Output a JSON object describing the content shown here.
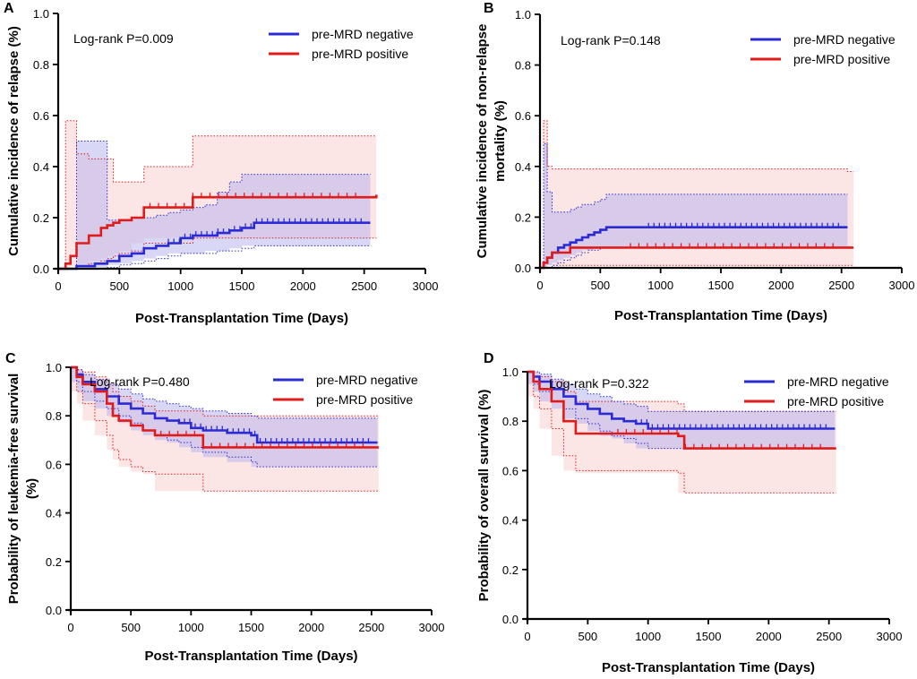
{
  "chart_data": [
    {
      "type": "line",
      "subtype": "kaplan-meier-cumulative-incidence",
      "panel": "A",
      "xlabel": "Post-Transplantation Time (Days)",
      "ylabel": "Cumulative incidence of relapse (%)",
      "xlim": [
        0,
        3000
      ],
      "ylim": [
        0,
        1.0
      ],
      "xticks": [
        "0",
        "500",
        "1000",
        "1500",
        "2000",
        "2500",
        "3000"
      ],
      "yticks": [
        "0.0",
        "0.2",
        "0.4",
        "0.6",
        "0.8",
        "1.0"
      ],
      "annotation": "Log-rank P=0.009",
      "legend": [
        "pre-MRD negative",
        "pre-MRD positive"
      ],
      "colors": {
        "negative": "#2b2bd6",
        "positive": "#e01b1b",
        "neg_band": "#b9b6ee",
        "pos_band": "#fbdede"
      },
      "series": [
        {
          "name": "pre-MRD negative",
          "x": [
            0,
            150,
            300,
            400,
            500,
            600,
            700,
            800,
            900,
            1000,
            1100,
            1200,
            1300,
            1400,
            1500,
            1600,
            2500,
            2550
          ],
          "y": [
            0,
            0.01,
            0.02,
            0.03,
            0.05,
            0.06,
            0.08,
            0.09,
            0.1,
            0.12,
            0.13,
            0.13,
            0.14,
            0.15,
            0.16,
            0.18,
            0.18,
            0.18
          ],
          "ci_lower": [
            0,
            0,
            0,
            0.005,
            0.015,
            0.02,
            0.03,
            0.04,
            0.05,
            0.06,
            0.06,
            0.06,
            0.07,
            0.07,
            0.08,
            0.09,
            0.09,
            0.09
          ],
          "ci_upper": [
            0,
            0.5,
            0.5,
            0.19,
            0.19,
            0.2,
            0.2,
            0.21,
            0.22,
            0.23,
            0.24,
            0.25,
            0.3,
            0.34,
            0.37,
            0.37,
            0.37,
            0.37
          ]
        },
        {
          "name": "pre-MRD positive",
          "x": [
            0,
            60,
            100,
            150,
            250,
            350,
            400,
            450,
            500,
            600,
            700,
            1100,
            2550,
            2600
          ],
          "y": [
            0,
            0.02,
            0.05,
            0.1,
            0.13,
            0.16,
            0.17,
            0.18,
            0.19,
            0.2,
            0.24,
            0.28,
            0.28,
            0.29
          ],
          "ci_lower": [
            0,
            0,
            0,
            0.01,
            0.02,
            0.03,
            0.04,
            0.05,
            0.06,
            0.07,
            0.1,
            0.12,
            0.12,
            0.12
          ],
          "ci_upper": [
            0,
            0.58,
            0.58,
            0.45,
            0.43,
            0.43,
            0.43,
            0.34,
            0.34,
            0.34,
            0.4,
            0.52,
            0.52,
            0.52
          ]
        }
      ]
    },
    {
      "type": "line",
      "subtype": "kaplan-meier-cumulative-incidence",
      "panel": "B",
      "xlabel": "Post-Transplantation Time (Days)",
      "ylabel": "Cumulative incidence of non-relapse mortality (%)",
      "xlim": [
        0,
        3000
      ],
      "ylim": [
        0,
        1.0
      ],
      "xticks": [
        "0",
        "500",
        "1000",
        "1500",
        "2000",
        "2500",
        "3000"
      ],
      "yticks": [
        "0.0",
        "0.2",
        "0.4",
        "0.6",
        "0.8",
        "1.0"
      ],
      "annotation": "Log-rank P=0.148",
      "legend": [
        "pre-MRD negative",
        "pre-MRD positive"
      ],
      "colors": {
        "negative": "#2b2bd6",
        "positive": "#e01b1b",
        "neg_band": "#b9b6ee",
        "pos_band": "#fbdede"
      },
      "series": [
        {
          "name": "pre-MRD negative",
          "x": [
            0,
            30,
            60,
            100,
            150,
            200,
            250,
            300,
            350,
            400,
            450,
            500,
            550,
            2550
          ],
          "y": [
            0,
            0.02,
            0.04,
            0.06,
            0.08,
            0.09,
            0.1,
            0.11,
            0.12,
            0.13,
            0.14,
            0.15,
            0.16,
            0.16
          ],
          "ci_lower": [
            0,
            0,
            0,
            0.01,
            0.02,
            0.03,
            0.04,
            0.05,
            0.06,
            0.07,
            0.07,
            0.08,
            0.08,
            0.08
          ],
          "ci_upper": [
            0,
            0.49,
            0.3,
            0.22,
            0.22,
            0.22,
            0.23,
            0.24,
            0.25,
            0.25,
            0.26,
            0.27,
            0.29,
            0.29
          ]
        },
        {
          "name": "pre-MRD positive",
          "x": [
            0,
            30,
            60,
            100,
            250,
            2550,
            2600
          ],
          "y": [
            0,
            0.02,
            0.04,
            0.06,
            0.08,
            0.08,
            0.08
          ],
          "ci_lower": [
            0,
            0,
            0,
            0.01,
            0.01,
            0.01,
            0.01
          ],
          "ci_upper": [
            0,
            0.58,
            0.4,
            0.39,
            0.39,
            0.38,
            0.38
          ]
        }
      ]
    },
    {
      "type": "line",
      "subtype": "kaplan-meier-survival",
      "panel": "C",
      "xlabel": "Post-Transplantation Time (Days)",
      "ylabel": "Probability of leukemia-free survival (%)",
      "xlim": [
        0,
        3000
      ],
      "ylim": [
        0,
        1.0
      ],
      "xticks": [
        "0",
        "500",
        "1000",
        "1500",
        "2000",
        "2500",
        "3000"
      ],
      "yticks": [
        "0.0",
        "0.2",
        "0.4",
        "0.6",
        "0.8",
        "1.0"
      ],
      "annotation": "Log-rank P=0.480",
      "legend": [
        "pre-MRD negative",
        "pre-MRD positive"
      ],
      "colors": {
        "negative": "#2b2bd6",
        "positive": "#e01b1b",
        "neg_band": "#b9b6ee",
        "pos_band": "#fbdede"
      },
      "series": [
        {
          "name": "pre-MRD negative",
          "x": [
            0,
            50,
            100,
            200,
            300,
            400,
            500,
            600,
            700,
            800,
            900,
            1000,
            1100,
            1300,
            1500,
            1550,
            2550
          ],
          "y": [
            1.0,
            0.97,
            0.94,
            0.91,
            0.88,
            0.85,
            0.83,
            0.81,
            0.79,
            0.78,
            0.77,
            0.75,
            0.74,
            0.73,
            0.72,
            0.69,
            0.69
          ],
          "ci_lower": [
            1.0,
            0.94,
            0.9,
            0.86,
            0.83,
            0.8,
            0.77,
            0.74,
            0.72,
            0.7,
            0.69,
            0.67,
            0.65,
            0.63,
            0.61,
            0.59,
            0.59
          ],
          "ci_upper": [
            1.0,
            0.99,
            0.97,
            0.95,
            0.93,
            0.91,
            0.89,
            0.87,
            0.86,
            0.85,
            0.84,
            0.83,
            0.82,
            0.81,
            0.8,
            0.79,
            0.79
          ]
        },
        {
          "name": "pre-MRD positive",
          "x": [
            0,
            50,
            100,
            200,
            300,
            350,
            400,
            500,
            600,
            700,
            1100,
            2550,
            2560
          ],
          "y": [
            1.0,
            0.96,
            0.93,
            0.9,
            0.85,
            0.8,
            0.78,
            0.76,
            0.74,
            0.72,
            0.67,
            0.67,
            0.67
          ],
          "ci_lower": [
            1.0,
            0.9,
            0.85,
            0.78,
            0.72,
            0.66,
            0.62,
            0.59,
            0.57,
            0.56,
            0.49,
            0.49,
            0.49
          ],
          "ci_upper": [
            1.0,
            0.99,
            0.98,
            0.96,
            0.93,
            0.9,
            0.88,
            0.86,
            0.84,
            0.82,
            0.8,
            0.8,
            0.8
          ]
        }
      ]
    },
    {
      "type": "line",
      "subtype": "kaplan-meier-survival",
      "panel": "D",
      "xlabel": "Post-Transplantation Time (Days)",
      "ylabel": "Probability of overall survival (%)",
      "xlim": [
        0,
        3000
      ],
      "ylim": [
        0,
        1.0
      ],
      "xticks": [
        "0",
        "500",
        "1000",
        "1500",
        "2000",
        "2500",
        "3000"
      ],
      "yticks": [
        "0.0",
        "0.2",
        "0.4",
        "0.6",
        "0.8",
        "1.0"
      ],
      "annotation": "Log-rank P=0.322",
      "legend": [
        "pre-MRD negative",
        "pre-MRD positive"
      ],
      "colors": {
        "negative": "#2b2bd6",
        "positive": "#e01b1b",
        "neg_band": "#b9b6ee",
        "pos_band": "#fbdede"
      },
      "series": [
        {
          "name": "pre-MRD negative",
          "x": [
            0,
            50,
            100,
            200,
            300,
            400,
            500,
            600,
            700,
            800,
            900,
            1000,
            2550
          ],
          "y": [
            1.0,
            0.98,
            0.96,
            0.93,
            0.9,
            0.87,
            0.85,
            0.83,
            0.81,
            0.8,
            0.79,
            0.77,
            0.77
          ],
          "ci_lower": [
            1.0,
            0.95,
            0.92,
            0.88,
            0.85,
            0.81,
            0.79,
            0.76,
            0.74,
            0.73,
            0.71,
            0.69,
            0.69
          ],
          "ci_upper": [
            1.0,
            1.0,
            0.99,
            0.97,
            0.95,
            0.93,
            0.91,
            0.9,
            0.88,
            0.87,
            0.86,
            0.84,
            0.84
          ]
        },
        {
          "name": "pre-MRD positive",
          "x": [
            0,
            50,
            100,
            200,
            300,
            400,
            1250,
            1300,
            2550,
            2560
          ],
          "y": [
            1.0,
            0.96,
            0.93,
            0.88,
            0.8,
            0.75,
            0.74,
            0.69,
            0.69,
            0.69
          ],
          "ci_lower": [
            1.0,
            0.9,
            0.85,
            0.77,
            0.66,
            0.6,
            0.59,
            0.51,
            0.51,
            0.51
          ],
          "ci_upper": [
            1.0,
            1.0,
            0.98,
            0.96,
            0.92,
            0.88,
            0.87,
            0.84,
            0.84,
            0.84
          ]
        }
      ]
    }
  ]
}
